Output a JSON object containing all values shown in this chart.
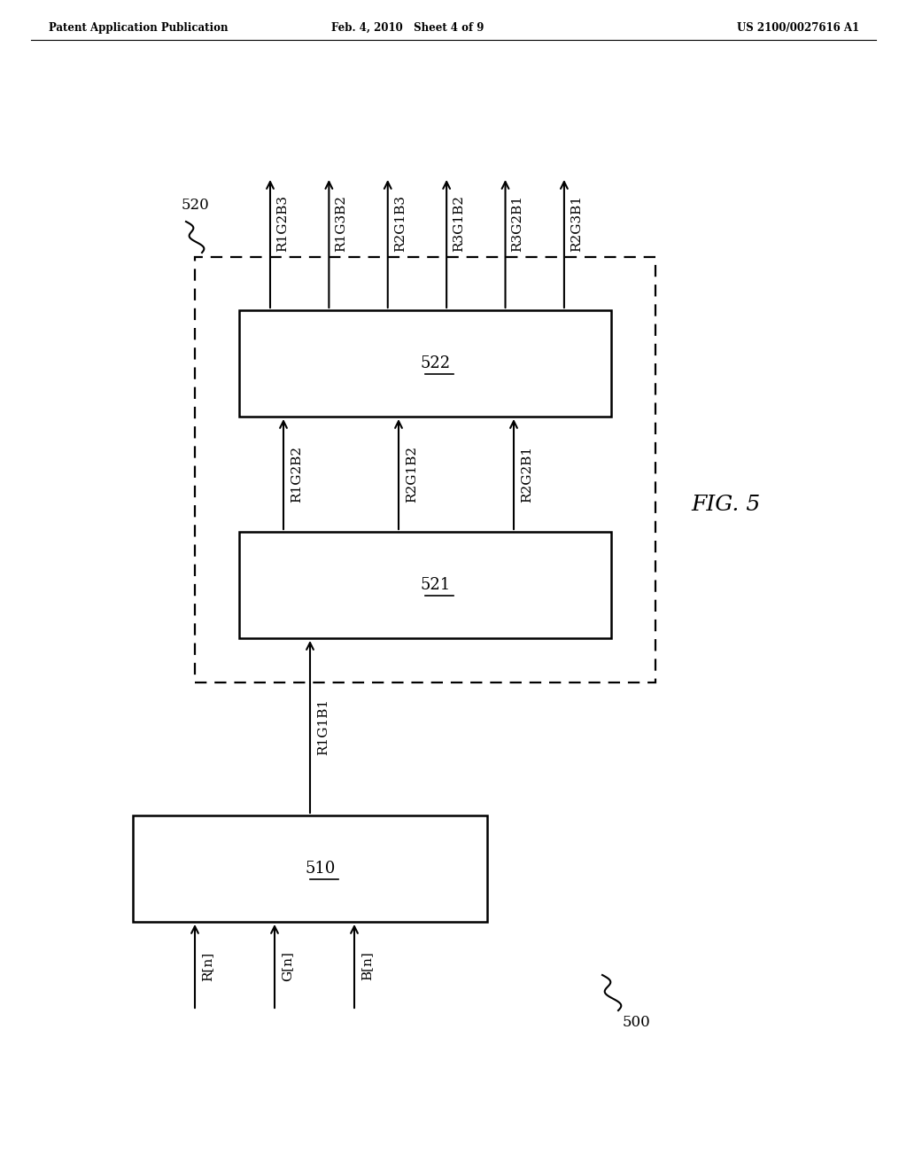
{
  "bg_color": "#ffffff",
  "header_left": "Patent Application Publication",
  "header_mid": "Feb. 4, 2010   Sheet 4 of 9",
  "header_right": "US 2100/0027616 A1",
  "fig_label": "FIG. 5",
  "label_500": "500",
  "label_520": "520",
  "box510_label": "510",
  "box521_label": "521",
  "box522_label": "522",
  "inputs": [
    "R[n]",
    "G[n]",
    "B[n]"
  ],
  "mid_signals": [
    "R1G2B2",
    "R2G1B2",
    "R2G2B1"
  ],
  "output_signals": [
    "R1G2B3",
    "R1G3B2",
    "R2G1B3",
    "R3G1B2",
    "R3G2B1",
    "R2G3B1"
  ],
  "conn_label": "R1G1B1",
  "page_width": 10.24,
  "page_height": 13.2
}
